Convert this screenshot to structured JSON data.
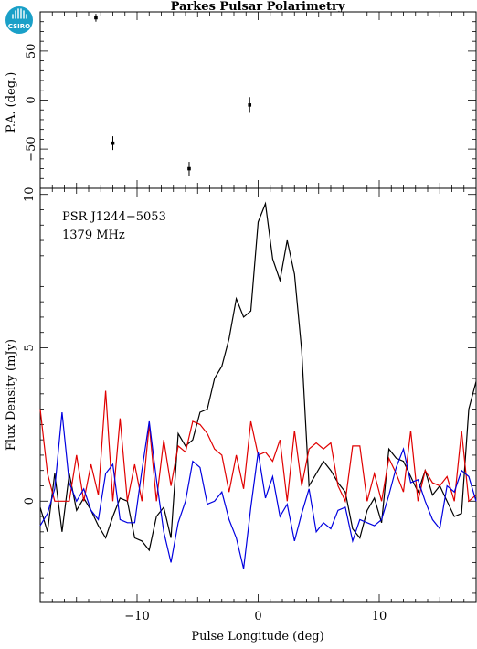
{
  "header": {
    "title": "Parkes Pulsar Polarimetry",
    "logo_text": "CSIRO"
  },
  "colors": {
    "total": "#000000",
    "linear": "#e00000",
    "circular": "#0000e0",
    "logo": "#1aa0c8"
  },
  "chart_data": [
    {
      "type": "scatter",
      "title": "",
      "ylabel": "P.A. (deg.)",
      "xlim": [
        -18,
        18
      ],
      "ylim": [
        -90,
        90
      ],
      "yticks_labeled": [
        -50,
        0,
        50
      ],
      "points": [
        {
          "x": -13.4,
          "y": 84,
          "err": 4
        },
        {
          "x": -12.0,
          "y": -44,
          "err": 7
        },
        {
          "x": -5.7,
          "y": -70,
          "err": 7
        },
        {
          "x": -0.7,
          "y": -5,
          "err": 8
        }
      ]
    },
    {
      "type": "line",
      "ylabel": "Flux Density (mJy)",
      "xlabel": "Pulse Longitude (deg)",
      "xlim": [
        -18,
        18
      ],
      "ylim": [
        -3.3,
        10.2
      ],
      "xticks_labeled": [
        -10,
        0,
        10
      ],
      "yticks_labeled": [
        0,
        5,
        10
      ],
      "annotations": [
        "PSR J1244−5053",
        "1379 MHz"
      ],
      "x": [
        -18,
        -17.4,
        -16.8,
        -16.2,
        -15.6,
        -15.0,
        -14.4,
        -13.8,
        -13.2,
        -12.6,
        -12.0,
        -11.4,
        -10.8,
        -10.2,
        -9.6,
        -9.0,
        -8.4,
        -7.8,
        -7.2,
        -6.6,
        -6.0,
        -5.4,
        -4.8,
        -4.2,
        -3.6,
        -3.0,
        -2.4,
        -1.8,
        -1.2,
        -0.6,
        0.0,
        0.6,
        1.2,
        1.8,
        2.4,
        3.0,
        3.6,
        4.2,
        4.8,
        5.4,
        6.0,
        6.6,
        7.2,
        7.8,
        8.4,
        9.0,
        9.6,
        10.2,
        10.8,
        11.4,
        12.0,
        12.6,
        13.2,
        13.8,
        14.4,
        15.0,
        15.6,
        16.2,
        16.8,
        17.4,
        18.0
      ],
      "series": [
        {
          "values": [
            -0.2,
            -1.0,
            0.9,
            -1.0,
            0.9,
            -0.3,
            0.1,
            -0.3,
            -0.8,
            -1.2,
            -0.5,
            0.1,
            0.0,
            -1.2,
            -1.3,
            -1.6,
            -0.5,
            -0.2,
            -1.2,
            2.2,
            1.8,
            2.0,
            2.9,
            3.0,
            4.0,
            4.4,
            5.3,
            6.6,
            6.0,
            6.2,
            9.1,
            9.7,
            7.9,
            7.2,
            8.5,
            7.4,
            4.9,
            0.5,
            0.9,
            1.3,
            1.0,
            0.6,
            0.3,
            -0.9,
            -1.2,
            -0.3,
            0.1,
            -0.7,
            1.7,
            1.4,
            1.3,
            0.8,
            0.3,
            1.0,
            0.2,
            0.5,
            0.0,
            -0.5,
            -0.4,
            3.0,
            3.9
          ]
        },
        {
          "values": [
            3.0,
            0.9,
            0.0,
            0.0,
            0.0,
            1.5,
            0.0,
            1.2,
            0.2,
            3.6,
            0.0,
            2.7,
            0.0,
            1.2,
            0.0,
            2.5,
            0.0,
            2.0,
            0.5,
            1.8,
            1.6,
            2.6,
            2.5,
            2.2,
            1.7,
            1.5,
            0.3,
            1.5,
            0.4,
            2.6,
            1.5,
            1.6,
            1.3,
            2.0,
            0.0,
            2.3,
            0.5,
            1.7,
            1.9,
            1.7,
            1.9,
            0.5,
            0.0,
            1.8,
            1.8,
            0.0,
            0.9,
            0.0,
            1.4,
            0.9,
            0.3,
            2.3,
            0.0,
            1.0,
            0.6,
            0.5,
            0.8,
            0.0,
            2.3,
            0.0,
            0.2
          ]
        },
        {
          "values": [
            -0.8,
            -0.4,
            0.4,
            2.9,
            0.6,
            0.0,
            0.4,
            -0.3,
            -0.6,
            0.9,
            1.2,
            -0.6,
            -0.7,
            -0.7,
            1.0,
            2.6,
            0.7,
            -1.0,
            -2.0,
            -0.7,
            0.0,
            1.3,
            1.1,
            -0.1,
            0.0,
            0.3,
            -0.6,
            -1.2,
            -2.2,
            -0.2,
            1.6,
            0.1,
            0.8,
            -0.5,
            -0.1,
            -1.3,
            -0.4,
            0.4,
            -1.0,
            -0.7,
            -0.9,
            -0.3,
            -0.2,
            -1.3,
            -0.6,
            -0.7,
            -0.8,
            -0.6,
            0.2,
            1.1,
            1.7,
            0.6,
            0.7,
            0.0,
            -0.6,
            -0.9,
            0.5,
            0.3,
            1.0,
            0.8,
            0.0
          ]
        }
      ]
    }
  ]
}
